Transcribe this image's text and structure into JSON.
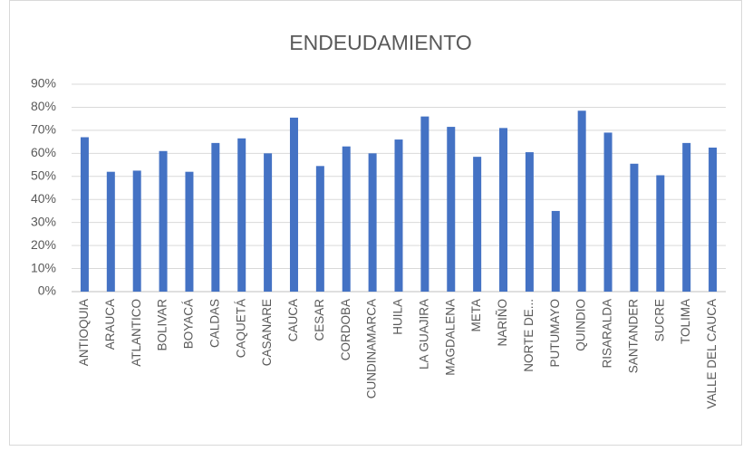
{
  "chart_data": {
    "type": "bar",
    "title": "ENDEUDAMIENTO",
    "categories": [
      "ANTIOQUIA",
      "ARAUCA",
      "ATLANTICO",
      "BOLIVAR",
      "BOYACÁ",
      "CALDAS",
      "CAQUETÁ",
      "CASANARE",
      "CAUCA",
      "CESAR",
      "CORDOBA",
      "CUNDINAMARCA",
      "HUILA",
      "LA GUAJIRA",
      "MAGDALENA",
      "META",
      "NARIÑO",
      "NORTE DE...",
      "PUTUMAYO",
      "QUINDIO",
      "RISARALDA",
      "SANTANDER",
      "SUCRE",
      "TOLIMA",
      "VALLE DEL CAUCA"
    ],
    "values": [
      67,
      52,
      52.5,
      61,
      52,
      64.5,
      66.5,
      60,
      75.5,
      54.5,
      63,
      60,
      66,
      76,
      71.5,
      58.5,
      71,
      60.5,
      35,
      78.5,
      69,
      55.5,
      50.5,
      64.5,
      62.5
    ],
    "color": "#4472c4",
    "ylim": [
      0,
      90
    ],
    "yticks": [
      {
        "value": 0,
        "label": "0%"
      },
      {
        "value": 10,
        "label": "10%"
      },
      {
        "value": 20,
        "label": "20%"
      },
      {
        "value": 30,
        "label": "30%"
      },
      {
        "value": 40,
        "label": "40%"
      },
      {
        "value": 50,
        "label": "50%"
      },
      {
        "value": 60,
        "label": "60%"
      },
      {
        "value": 70,
        "label": "70%"
      },
      {
        "value": 80,
        "label": "80%"
      },
      {
        "value": 90,
        "label": "90%"
      }
    ],
    "grid": true
  }
}
